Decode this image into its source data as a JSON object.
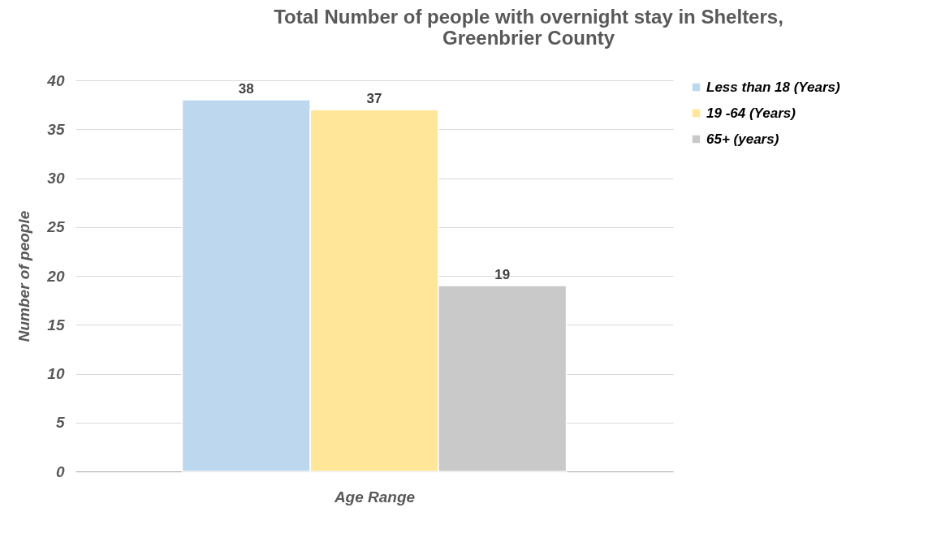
{
  "chart_data": {
    "type": "bar",
    "title": "Total Number of people with overnight stay in Shelters, Greenbrier County",
    "xlabel": "Age Range",
    "ylabel": "Number of people",
    "categories": [
      null
    ],
    "series": [
      {
        "name": "Less than 18 (Years)",
        "color": "#bdd7ee",
        "values": [
          38
        ]
      },
      {
        "name": "19 -64 (Years)",
        "color": "#ffe699",
        "values": [
          37
        ]
      },
      {
        "name": "65+ (years)",
        "color": "#c9c9c9",
        "values": [
          19
        ]
      }
    ],
    "ylim": [
      0,
      40
    ],
    "yticks": [
      0,
      5,
      10,
      15,
      20,
      25,
      30,
      35,
      40
    ],
    "grid": "y",
    "legend": "right",
    "data_labels": true
  }
}
